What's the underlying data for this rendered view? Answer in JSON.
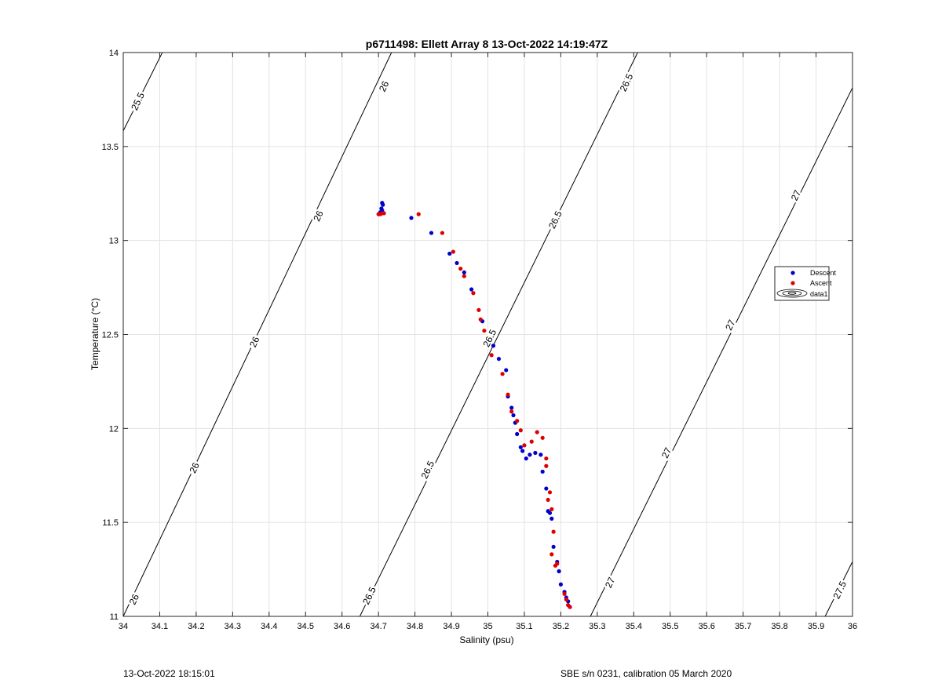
{
  "chart_data": {
    "type": "scatter",
    "title": "p6711498: Ellett Array 8 13-Oct-2022 14:19:47Z",
    "xlabel": "Salinity (psu)",
    "ylabel": "Temperature (°C)",
    "xlim": [
      34,
      36
    ],
    "ylim": [
      11,
      14
    ],
    "xticks": [
      "34",
      "34.1",
      "34.2",
      "34.3",
      "34.4",
      "34.5",
      "34.6",
      "34.7",
      "34.8",
      "34.9",
      "35",
      "35.1",
      "35.2",
      "35.3",
      "35.4",
      "35.5",
      "35.6",
      "35.7",
      "35.8",
      "35.9",
      "36"
    ],
    "yticks": [
      "11",
      "11.5",
      "12",
      "12.5",
      "13",
      "13.5",
      "14"
    ],
    "grid": true,
    "legend_position": "right",
    "legend": [
      "Descent",
      "Ascent",
      "data1"
    ],
    "colors": {
      "descent": "#0000cc",
      "ascent": "#dd0000",
      "contour": "#000000",
      "grid": "#e3e3e3"
    },
    "series": [
      {
        "name": "Descent",
        "x": [
          34.71,
          34.712,
          34.708,
          34.705,
          34.71,
          34.79,
          34.845,
          34.895,
          34.915,
          34.935,
          34.955,
          34.985,
          35.015,
          35.03,
          35.05,
          35.055,
          35.065,
          35.07,
          35.075,
          35.08,
          35.09,
          35.095,
          35.105,
          35.115,
          35.13,
          35.145,
          35.15,
          35.16,
          35.165,
          35.17,
          35.175,
          35.18,
          35.19,
          35.195,
          35.2,
          35.21,
          35.215,
          35.22,
          35.225
        ],
        "y": [
          13.2,
          13.19,
          13.17,
          13.15,
          13.16,
          13.12,
          13.04,
          12.93,
          12.88,
          12.83,
          12.74,
          12.57,
          12.44,
          12.37,
          12.31,
          12.17,
          12.11,
          12.07,
          12.03,
          11.97,
          11.9,
          11.88,
          11.84,
          11.86,
          11.87,
          11.86,
          11.77,
          11.68,
          11.56,
          11.55,
          11.52,
          11.37,
          11.29,
          11.24,
          11.17,
          11.13,
          11.1,
          11.08,
          11.05
        ]
      },
      {
        "name": "Ascent",
        "x": [
          34.7,
          34.705,
          34.71,
          34.715,
          34.81,
          34.875,
          34.905,
          34.925,
          34.935,
          34.96,
          34.975,
          34.98,
          34.99,
          35.01,
          35.04,
          35.055,
          35.065,
          35.08,
          35.09,
          35.1,
          35.12,
          35.135,
          35.15,
          35.16,
          35.16,
          35.165,
          35.17,
          35.175,
          35.18,
          35.175,
          35.185,
          35.19,
          35.21,
          35.215,
          35.22,
          35.225
        ],
        "y": [
          13.14,
          13.14,
          13.145,
          13.145,
          13.14,
          13.04,
          12.94,
          12.85,
          12.81,
          12.72,
          12.63,
          12.58,
          12.52,
          12.39,
          12.29,
          12.18,
          12.09,
          12.04,
          11.99,
          11.91,
          11.93,
          11.98,
          11.95,
          11.84,
          11.8,
          11.62,
          11.66,
          11.57,
          11.45,
          11.33,
          11.27,
          11.28,
          11.12,
          11.09,
          11.06,
          11.05
        ]
      }
    ],
    "contours": [
      {
        "label": "25.5",
        "x": [
          34.0,
          34.1071
        ],
        "y": [
          13.5833,
          14.0
        ]
      },
      {
        "label": "26",
        "x": [
          34.0,
          34.7357
        ],
        "y": [
          11.0,
          14.0
        ]
      },
      {
        "label": "26.5",
        "x": [
          34.6489,
          35.4107
        ],
        "y": [
          11.0,
          14.0
        ]
      },
      {
        "label": "27",
        "x": [
          35.2812,
          36.0
        ],
        "y": [
          11.0,
          13.8125
        ]
      },
      {
        "label": "27.5",
        "x": [
          35.9249,
          36.0
        ],
        "y": [
          11.0,
          11.2917
        ]
      }
    ],
    "contour_labels": [
      {
        "text": "25.5",
        "x": 34.04,
        "y": 13.74
      },
      {
        "text": "26",
        "x": 34.715,
        "y": 13.82
      },
      {
        "text": "26",
        "x": 34.535,
        "y": 13.13
      },
      {
        "text": "26",
        "x": 34.36,
        "y": 12.46
      },
      {
        "text": "26",
        "x": 34.195,
        "y": 11.79
      },
      {
        "text": "26",
        "x": 34.03,
        "y": 11.09
      },
      {
        "text": "26.5",
        "x": 35.38,
        "y": 13.84
      },
      {
        "text": "26.5",
        "x": 35.185,
        "y": 13.11
      },
      {
        "text": "26.5",
        "x": 35.005,
        "y": 12.48
      },
      {
        "text": "26.5",
        "x": 34.835,
        "y": 11.78
      },
      {
        "text": "26.5",
        "x": 34.675,
        "y": 11.11
      },
      {
        "text": "27",
        "x": 35.845,
        "y": 13.24
      },
      {
        "text": "27",
        "x": 35.665,
        "y": 12.55
      },
      {
        "text": "27",
        "x": 35.49,
        "y": 11.87
      },
      {
        "text": "27",
        "x": 35.335,
        "y": 11.18
      },
      {
        "text": "27.5",
        "x": 35.965,
        "y": 11.14
      }
    ]
  },
  "footer": {
    "left": "13-Oct-2022 18:15:01",
    "right": "SBE s/n 0231, calibration 05 March 2020"
  }
}
